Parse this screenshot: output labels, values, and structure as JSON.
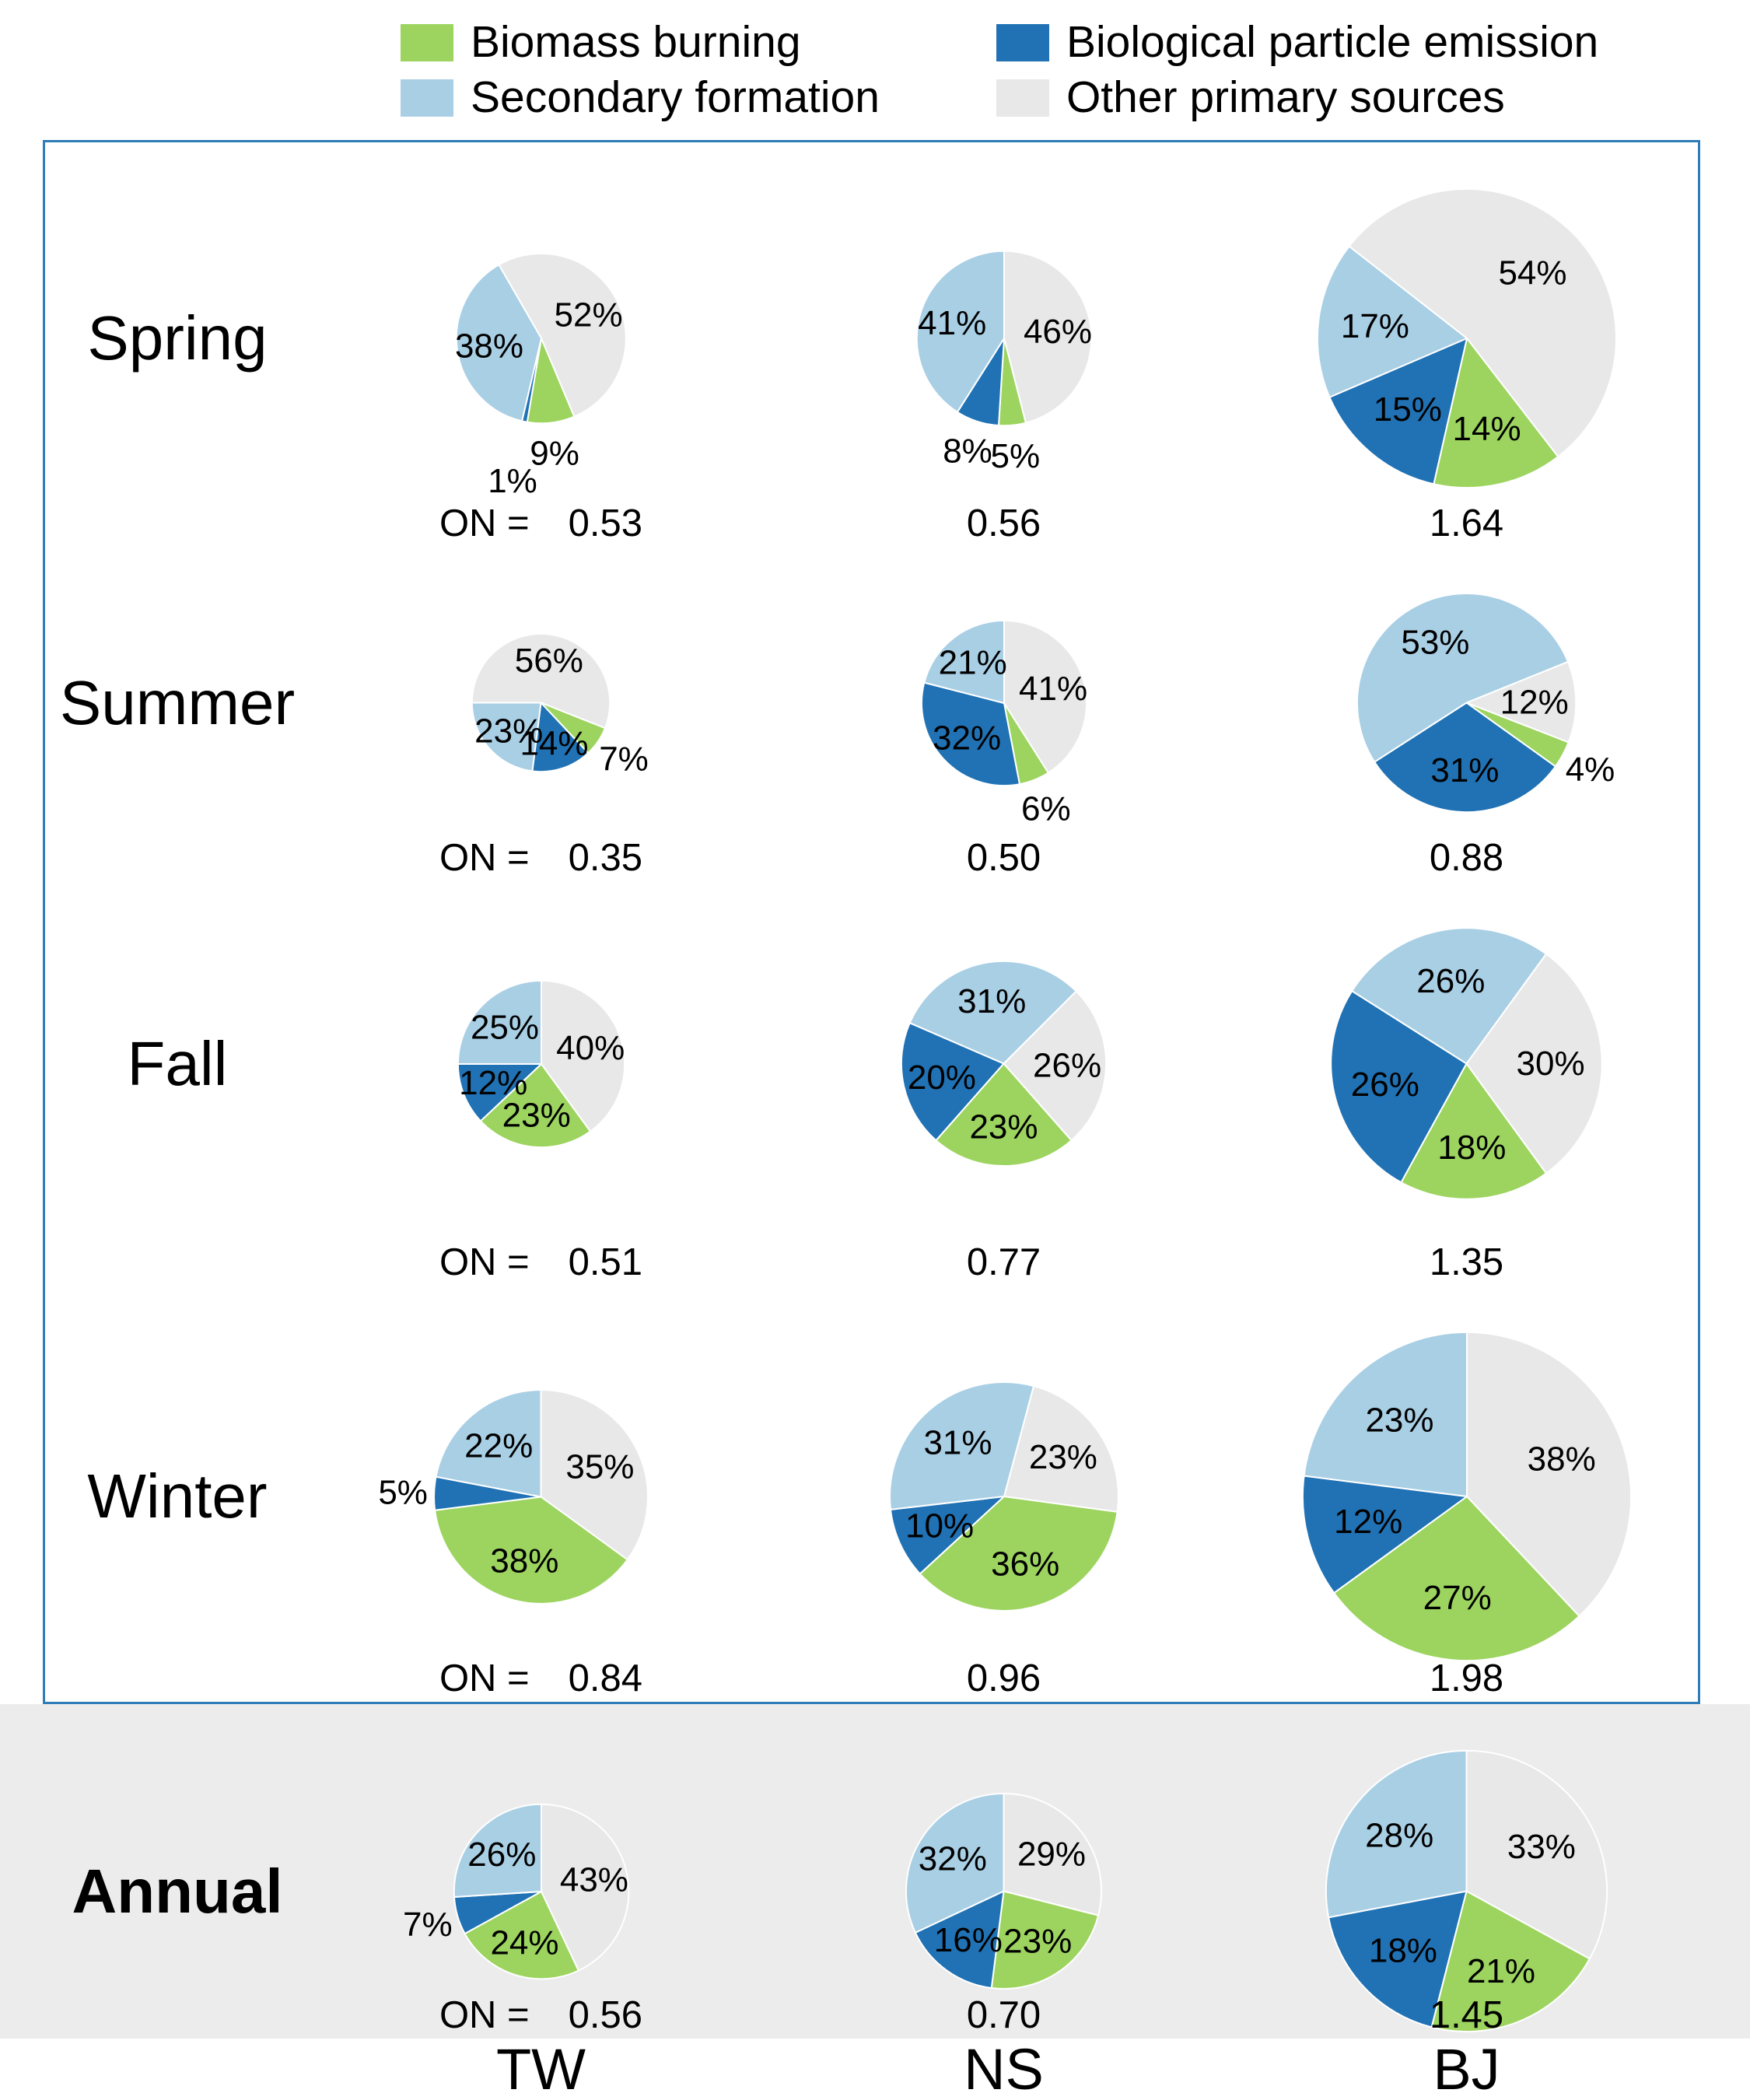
{
  "legend": {
    "items": [
      {
        "key": "biomass",
        "label": "Biomass burning"
      },
      {
        "key": "secondary",
        "label": "Secondary formation"
      },
      {
        "key": "biological",
        "label": "Biological particle emission"
      },
      {
        "key": "other",
        "label": "Other primary sources"
      }
    ]
  },
  "columns": [
    "TW",
    "NS",
    "BJ"
  ],
  "on_prefix": "ON =",
  "chart_data": {
    "type": "pie-grid",
    "description": "Seasonal source apportionment pie charts at three sites (TW, NS, BJ); pie area scales with the ON value shown under each pie",
    "categories": [
      "Biomass burning",
      "Secondary formation",
      "Biological particle emission",
      "Other primary sources"
    ],
    "colors": {
      "biomass": "#9CD45F",
      "secondary": "#A9CFE5",
      "biological": "#2072B4",
      "other": "#E8E8E8"
    },
    "slice_order_clockwise_from_top": [
      "other",
      "biomass",
      "biological",
      "secondary"
    ],
    "radius_scale": 150,
    "rows": [
      {
        "label": "Spring",
        "bold": false,
        "pies": [
          {
            "column": "TW",
            "on": "0.53",
            "start_deg": -30,
            "values": {
              "biomass": 9,
              "secondary": 38,
              "biological": 1,
              "other": 52
            }
          },
          {
            "column": "NS",
            "on": "0.56",
            "start_deg": 0,
            "values": {
              "biomass": 5,
              "secondary": 41,
              "biological": 8,
              "other": 46
            }
          },
          {
            "column": "BJ",
            "on": "1.64",
            "start_deg": -52,
            "values": {
              "biomass": 14,
              "secondary": 17,
              "biological": 15,
              "other": 54
            }
          }
        ]
      },
      {
        "label": "Summer",
        "bold": false,
        "pies": [
          {
            "column": "TW",
            "on": "0.35",
            "start_deg": -90,
            "values": {
              "biomass": 7,
              "secondary": 23,
              "biological": 14,
              "other": 56
            }
          },
          {
            "column": "NS",
            "on": "0.50",
            "start_deg": 0,
            "values": {
              "biomass": 6,
              "secondary": 21,
              "biological": 32,
              "other": 41
            }
          },
          {
            "column": "BJ",
            "on": "0.88",
            "start_deg": 68,
            "values": {
              "biomass": 4,
              "secondary": 53,
              "biological": 31,
              "other": 12
            }
          }
        ]
      },
      {
        "label": "Fall",
        "bold": false,
        "pies": [
          {
            "column": "TW",
            "on": "0.51",
            "start_deg": 0,
            "values": {
              "biomass": 23,
              "secondary": 25,
              "biological": 12,
              "other": 40
            }
          },
          {
            "column": "NS",
            "on": "0.77",
            "start_deg": 45,
            "values": {
              "biomass": 23,
              "secondary": 31,
              "biological": 20,
              "other": 26
            }
          },
          {
            "column": "BJ",
            "on": "1.35",
            "start_deg": 36,
            "values": {
              "biomass": 18,
              "secondary": 26,
              "biological": 26,
              "other": 30
            }
          }
        ]
      },
      {
        "label": "Winter",
        "bold": false,
        "pies": [
          {
            "column": "TW",
            "on": "0.84",
            "start_deg": 0,
            "values": {
              "biomass": 38,
              "secondary": 22,
              "biological": 5,
              "other": 35
            }
          },
          {
            "column": "NS",
            "on": "0.96",
            "start_deg": 15,
            "values": {
              "biomass": 36,
              "secondary": 31,
              "biological": 10,
              "other": 23
            }
          },
          {
            "column": "BJ",
            "on": "1.98",
            "start_deg": 0,
            "values": {
              "biomass": 27,
              "secondary": 23,
              "biological": 12,
              "other": 38
            }
          }
        ]
      },
      {
        "label": "Annual",
        "bold": true,
        "pies": [
          {
            "column": "TW",
            "on": "0.56",
            "start_deg": 0,
            "values": {
              "biomass": 24,
              "secondary": 26,
              "biological": 7,
              "other": 43
            }
          },
          {
            "column": "NS",
            "on": "0.70",
            "start_deg": 0,
            "values": {
              "biomass": 23,
              "secondary": 32,
              "biological": 16,
              "other": 29
            }
          },
          {
            "column": "BJ",
            "on": "1.45",
            "start_deg": 0,
            "values": {
              "biomass": 21,
              "secondary": 28,
              "biological": 18,
              "other": 33
            }
          }
        ]
      }
    ]
  },
  "styles": {
    "panel_border": "#2E7DB8",
    "annual_band_bg": "#ECECEC",
    "background": "#FFFFFF"
  }
}
